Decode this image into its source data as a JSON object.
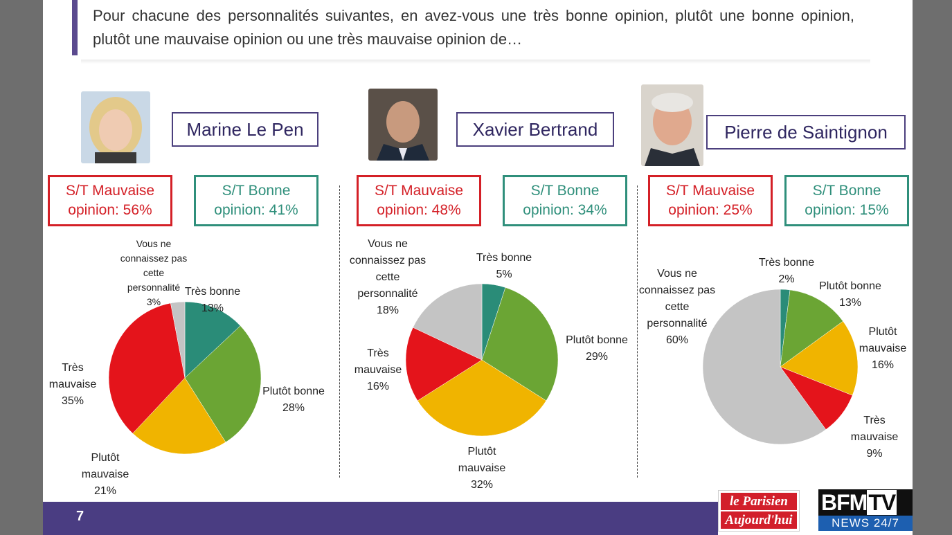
{
  "question": "Pour chacune des personnalités suivantes, en avez-vous une très bonne opinion, plutôt une bonne opinion, plutôt une mauvaise opinion ou une très mauvaise opinion de…",
  "colors": {
    "tres_bonne": "#2a8c78",
    "plutot_bonne": "#6ba534",
    "plutot_mauvaise": "#f0b400",
    "tres_mauvaise": "#e4141b",
    "inconnu": "#c4c4c4",
    "accent": "#4b3f7d"
  },
  "persons": [
    {
      "name": "Marine Le Pen",
      "photo_icon": "portrait-photo",
      "bad_summary": [
        "S/T Mauvaise",
        "opinion: 56%"
      ],
      "good_summary": [
        "S/T Bonne",
        "opinion: 41%"
      ]
    },
    {
      "name": "Xavier Bertrand",
      "photo_icon": "portrait-photo",
      "bad_summary": [
        "S/T Mauvaise",
        "opinion: 48%"
      ],
      "good_summary": [
        "S/T Bonne",
        "opinion: 34%"
      ]
    },
    {
      "name": "Pierre de Saintignon",
      "photo_icon": "portrait-photo",
      "bad_summary": [
        "S/T Mauvaise",
        "opinion: 25%"
      ],
      "good_summary": [
        "S/T Bonne",
        "opinion: 15%"
      ]
    }
  ],
  "chart_data": [
    {
      "type": "pie",
      "title": "",
      "slices": [
        {
          "key": "tres_bonne",
          "label": [
            "Très bonne",
            "13%"
          ],
          "value": 13
        },
        {
          "key": "plutot_bonne",
          "label": [
            "Plutôt bonne",
            "28%"
          ],
          "value": 28
        },
        {
          "key": "plutot_mauvaise",
          "label": [
            "Plutôt",
            "mauvaise",
            "21%"
          ],
          "value": 21
        },
        {
          "key": "tres_mauvaise",
          "label": [
            "Très",
            "mauvaise",
            "35%"
          ],
          "value": 35
        },
        {
          "key": "inconnu",
          "label": [
            "Vous ne",
            "connaissez pas",
            "cette",
            "personnalité",
            "3%"
          ],
          "value": 3
        }
      ]
    },
    {
      "type": "pie",
      "title": "",
      "slices": [
        {
          "key": "tres_bonne",
          "label": [
            "Très bonne",
            "5%"
          ],
          "value": 5
        },
        {
          "key": "plutot_bonne",
          "label": [
            "Plutôt bonne",
            "29%"
          ],
          "value": 29
        },
        {
          "key": "plutot_mauvaise",
          "label": [
            "Plutôt",
            "mauvaise",
            "32%"
          ],
          "value": 32
        },
        {
          "key": "tres_mauvaise",
          "label": [
            "Très",
            "mauvaise",
            "16%"
          ],
          "value": 16
        },
        {
          "key": "inconnu",
          "label": [
            "Vous ne",
            "connaissez pas",
            "cette",
            "personnalité",
            "18%"
          ],
          "value": 18
        }
      ]
    },
    {
      "type": "pie",
      "title": "",
      "slices": [
        {
          "key": "tres_bonne",
          "label": [
            "Très bonne",
            "2%"
          ],
          "value": 2
        },
        {
          "key": "plutot_bonne",
          "label": [
            "Plutôt bonne",
            "13%"
          ],
          "value": 13
        },
        {
          "key": "plutot_mauvaise",
          "label": [
            "Plutôt",
            "mauvaise",
            "16%"
          ],
          "value": 16
        },
        {
          "key": "tres_mauvaise",
          "label": [
            "Très",
            "mauvaise",
            "9%"
          ],
          "value": 9
        },
        {
          "key": "inconnu",
          "label": [
            "Vous ne",
            "connaissez pas",
            "cette",
            "personnalité",
            "60%"
          ],
          "value": 60
        }
      ]
    }
  ],
  "footer": {
    "page_number": "7",
    "logo_parisien": [
      "le Parisien",
      "Aujourd'hui"
    ],
    "logo_bfm": {
      "brand": "BFM",
      "tv": "TV",
      "sub": "NEWS 24/7"
    }
  }
}
